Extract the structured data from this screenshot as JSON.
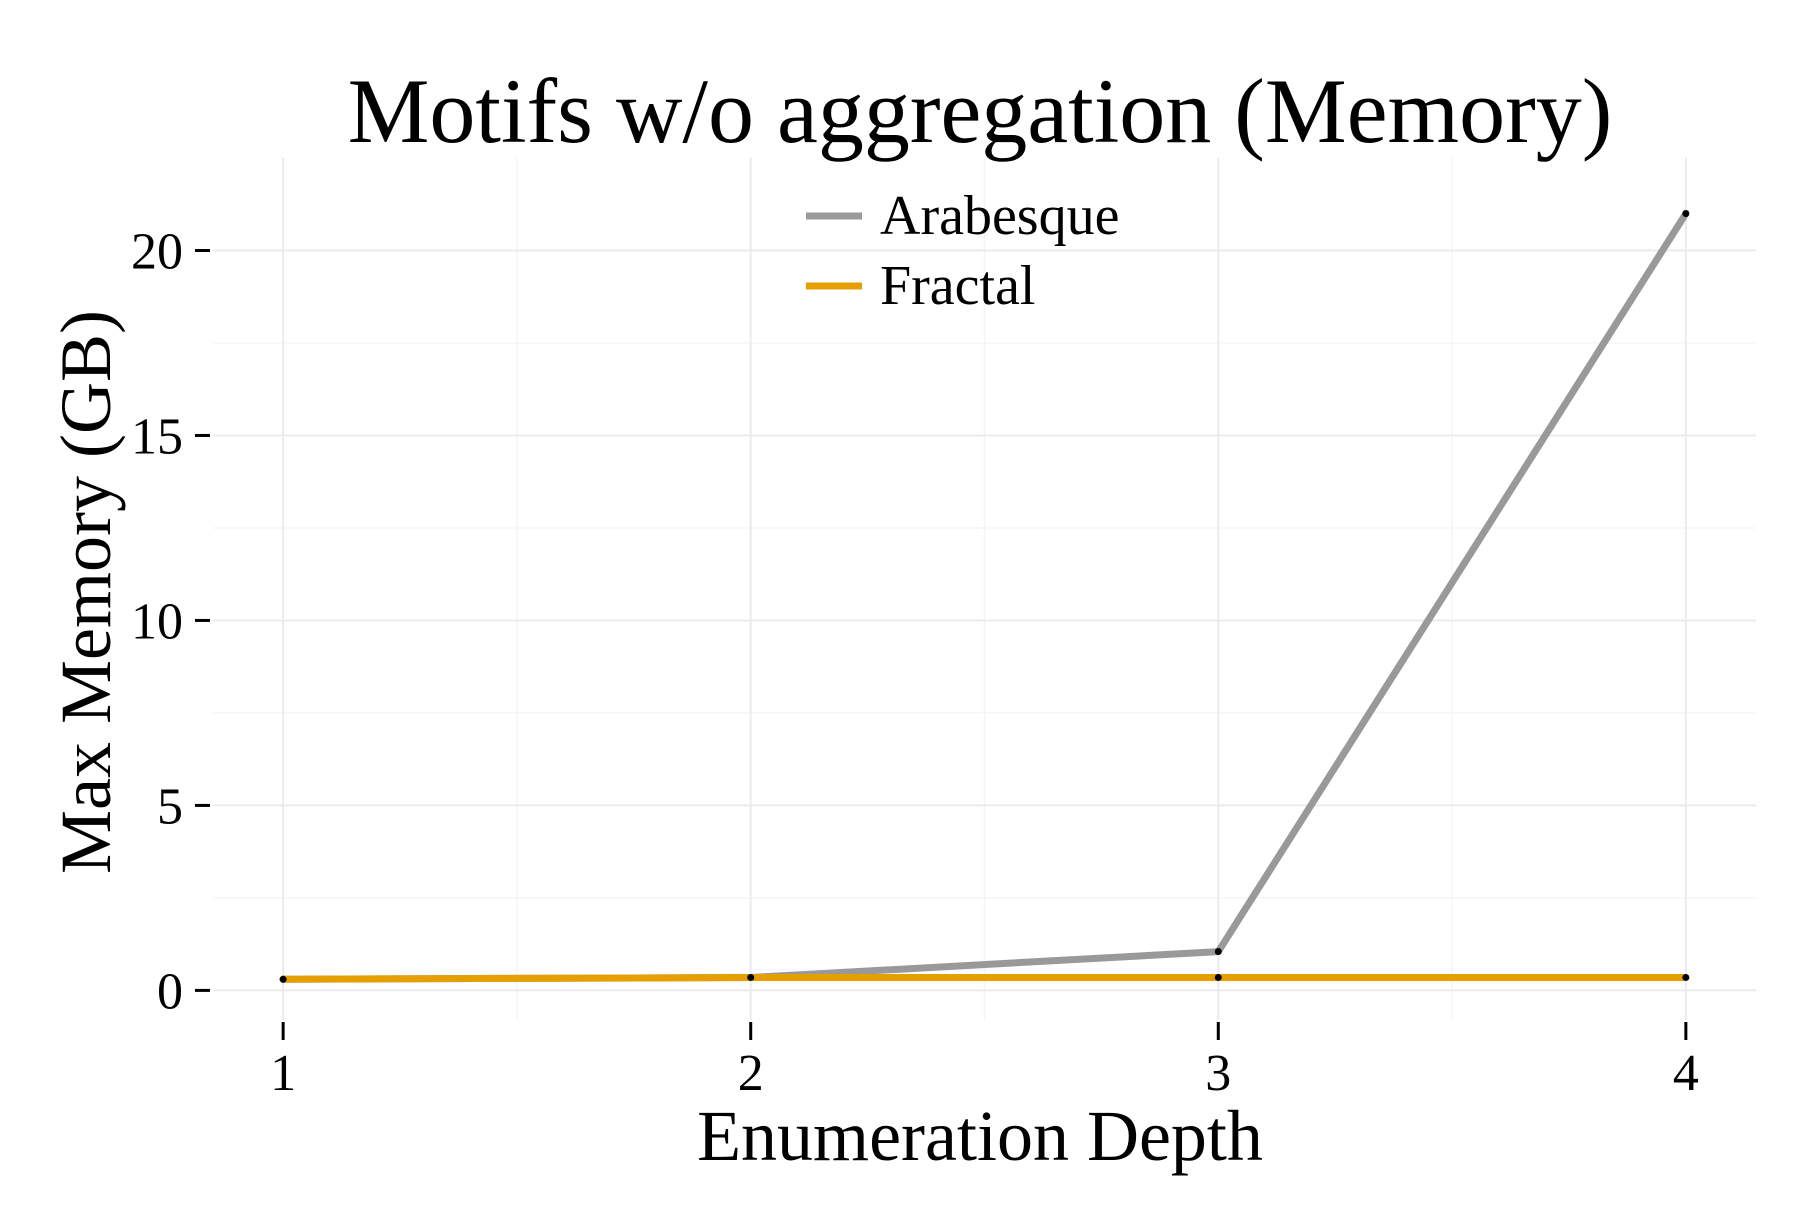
{
  "chart_data": {
    "type": "line",
    "title": "Motifs w/o aggregation (Memory)",
    "xlabel": "Enumeration Depth",
    "ylabel": "Max Memory (GB)",
    "x": [
      1,
      2,
      3,
      4
    ],
    "xticks": [
      1,
      2,
      3,
      4
    ],
    "yticks": [
      0,
      5,
      10,
      15,
      20
    ],
    "xlim": [
      0.85,
      4.15
    ],
    "ylim": [
      -0.8,
      22.5
    ],
    "grid": true,
    "legend_position": "top-center",
    "series": [
      {
        "name": "Arabesque",
        "color": "#999999",
        "values": [
          0.3,
          0.35,
          1.05,
          21.0
        ]
      },
      {
        "name": "Fractal",
        "color": "#E69F00",
        "values": [
          0.3,
          0.35,
          0.35,
          0.35
        ]
      }
    ]
  }
}
